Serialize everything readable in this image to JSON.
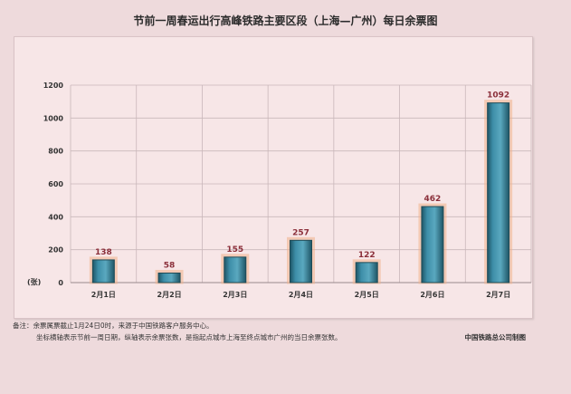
{
  "chart_data": {
    "type": "bar",
    "title": "节前一周春运出行高峰铁路主要区段（上海—广州）每日余票图",
    "ylabel": "(张)",
    "ylim": [
      0,
      1200
    ],
    "yticks": [
      0,
      200,
      400,
      600,
      800,
      1000,
      1200
    ],
    "categories": [
      "2月1日",
      "2月2日",
      "2月3日",
      "2月4日",
      "2月5日",
      "2月6日",
      "2月7日"
    ],
    "values": [
      138,
      58,
      155,
      257,
      122,
      462,
      1092
    ],
    "grid": true,
    "colors": {
      "bar": "#3d8ea8",
      "bar_edge": "#1f4a55",
      "bar_glow": "#f0b08a",
      "value_label": "#8b2f3a",
      "grid": "#c9b7ba"
    }
  },
  "notes": {
    "line1": "备注：余票属票截止1月24日0时，来源于中国铁路客户服务中心。",
    "line2": "坐标横轴表示节前一周日期，纵轴表示余票张数，是指起点城市上海至终点城市广州的当日余票张数。",
    "credit": "中国铁路总公司制图"
  }
}
